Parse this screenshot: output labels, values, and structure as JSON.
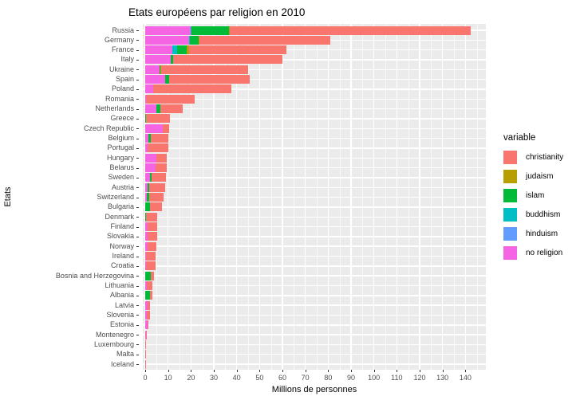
{
  "chart_data": {
    "type": "bar",
    "orientation": "horizontal",
    "stacked": true,
    "title": "Etats européens par religion en 2010",
    "xlabel": "Millions de personnes",
    "ylabel": "Etats",
    "legend_title": "variable",
    "legend_position": "right",
    "grid": true,
    "panel_bg": "#EBEBEB",
    "gridline_color": "#FFFFFF",
    "tick_label_color": "#4D4D4D",
    "x_ticks": [
      0,
      10,
      20,
      30,
      40,
      50,
      60,
      70,
      80,
      90,
      100,
      110,
      120,
      130,
      140
    ],
    "x_minor_ticks": [
      5,
      15,
      25,
      35,
      45,
      55,
      65,
      75,
      85,
      95,
      105,
      115,
      125,
      135,
      145
    ],
    "xlim": [
      -1,
      149
    ],
    "categories": [
      "Russia",
      "Germany",
      "France",
      "Italy",
      "Ukraine",
      "Spain",
      "Poland",
      "Romania",
      "Netherlands",
      "Greece",
      "Czech Republic",
      "Belgium",
      "Portugal",
      "Hungary",
      "Belarus",
      "Sweden",
      "Austria",
      "Switzerland",
      "Bulgaria",
      "Denmark",
      "Finland",
      "Slovakia",
      "Norway",
      "Ireland",
      "Croatia",
      "Bosnia and Herzegovina",
      "Lithuania",
      "Albania",
      "Latvia",
      "Slovenia",
      "Estonia",
      "Montenegro",
      "Luxembourg",
      "Malta",
      "Iceland"
    ],
    "stack_order_note": "bars stacked left-to-right: no religion, hinduism, buddhism, islam, judaism, christianity",
    "series": [
      {
        "name": "christianity",
        "color": "#F8766D",
        "values": [
          105.5,
          57.2,
          42.5,
          47.6,
          38.2,
          35.2,
          34.2,
          21.1,
          9.5,
          10.4,
          2.6,
          7.6,
          8.8,
          4.5,
          5.0,
          6.3,
          6.8,
          6.1,
          5.3,
          4.9,
          4.5,
          4.5,
          3.9,
          4.1,
          3.9,
          1.4,
          2.5,
          0.9,
          0.9,
          1.3,
          0.4,
          0.3,
          0.35,
          0.45,
          0.3
        ]
      },
      {
        "name": "judaism",
        "color": "#B79F00",
        "values": [
          0.3,
          0.2,
          1.0,
          0,
          0.1,
          0,
          0,
          0,
          0,
          0,
          0,
          0,
          0,
          0,
          0,
          0,
          0,
          0,
          0,
          0,
          0,
          0,
          0,
          0,
          0,
          0,
          0,
          0,
          0,
          0,
          0,
          0,
          0,
          0,
          0
        ]
      },
      {
        "name": "islam",
        "color": "#00BA38",
        "values": [
          16.4,
          4.0,
          4.2,
          1.0,
          0.5,
          2.0,
          0,
          0.3,
          1.9,
          0.5,
          0,
          0.9,
          0,
          0,
          0,
          0.7,
          1.0,
          1.0,
          2.1,
          0.2,
          0,
          0,
          0.15,
          0,
          0,
          2.4,
          0,
          2.1,
          0,
          0,
          0,
          0.1,
          0.05,
          0,
          0
        ]
      },
      {
        "name": "buddhism",
        "color": "#00BFC4",
        "values": [
          0.3,
          0.2,
          2.1,
          0,
          0,
          0,
          0,
          0,
          0.1,
          0,
          0,
          0,
          0,
          0,
          0,
          0,
          0,
          0,
          0,
          0,
          0,
          0,
          0,
          0,
          0,
          0,
          0,
          0,
          0,
          0,
          0,
          0,
          0,
          0,
          0
        ]
      },
      {
        "name": "hinduism",
        "color": "#619CFF",
        "values": [
          0,
          0,
          0,
          0,
          0,
          0,
          0,
          0,
          0,
          0,
          0,
          0,
          0,
          0,
          0,
          0,
          0,
          0,
          0,
          0,
          0,
          0,
          0,
          0,
          0,
          0,
          0,
          0,
          0,
          0,
          0,
          0,
          0,
          0,
          0
        ]
      },
      {
        "name": "no religion",
        "color": "#F564E3",
        "values": [
          20.0,
          19.2,
          12.0,
          11.3,
          6.3,
          8.6,
          3.5,
          0.2,
          4.8,
          0,
          7.8,
          1.5,
          1.2,
          4.8,
          4.4,
          2.1,
          0.9,
          0.8,
          0,
          0.15,
          0.9,
          0.9,
          0.9,
          0.4,
          0.5,
          0,
          0.8,
          0,
          1.2,
          0.7,
          0.9,
          0.3,
          0.1,
          0,
          0
        ]
      }
    ]
  }
}
